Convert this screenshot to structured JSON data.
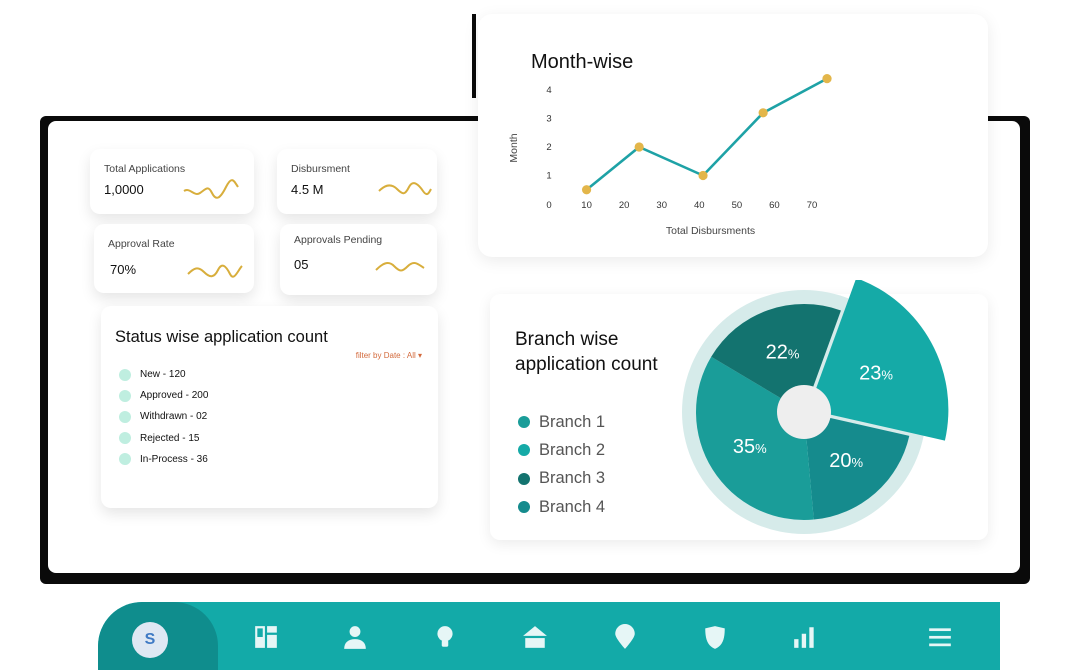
{
  "kpis": [
    {
      "label": "Total Applications",
      "value": "1,0000"
    },
    {
      "label": "Disbursment",
      "value": "4.5 M"
    },
    {
      "label": "Approval Rate",
      "value": "70%"
    },
    {
      "label": "Approvals Pending",
      "value": "05"
    }
  ],
  "status": {
    "title": "Status wise application count",
    "filter": "filter by Date : All",
    "items": [
      "New - 120",
      "Approved - 200",
      "Withdrawn - 02",
      "Rejected - 15",
      "In-Process - 36"
    ]
  },
  "chart_data": [
    {
      "type": "line",
      "title": "Month-wise",
      "xlabel": "Total Disbursments",
      "ylabel": "Month",
      "xlim": [
        0,
        70
      ],
      "ylim": [
        0,
        4
      ],
      "xticks": [
        "0",
        "10",
        "20",
        "30",
        "40",
        "50",
        "60",
        "70"
      ],
      "yticks": [
        "1",
        "2",
        "3",
        "4"
      ],
      "grid": false,
      "series": [
        {
          "x": [
            10,
            24,
            41,
            57,
            74
          ],
          "y": [
            0.5,
            2,
            1,
            3.2,
            4.4
          ],
          "color": "#1ea2a6",
          "marker_color": "#e3b64a"
        }
      ]
    },
    {
      "type": "pie",
      "title": "Branch wise application count",
      "categories": [
        "Branch 1",
        "Branch 2",
        "Branch 3",
        "Branch 4"
      ],
      "values": [
        23,
        20,
        35,
        22
      ],
      "labels": [
        "23%",
        "20%",
        "35%",
        "22%"
      ],
      "colors": [
        "#15aaa7",
        "#158b8d",
        "#1a9d99",
        "#13736f"
      ],
      "legend_colors": [
        "#1a9d99",
        "#15aaa7",
        "#13736f",
        "#158b8d"
      ]
    }
  ],
  "nav": {
    "logo": "S",
    "items": [
      "dashboard-icon",
      "user-icon",
      "lightbulb-icon",
      "home-icon",
      "location-pin-icon",
      "shield-icon",
      "bar-chart-icon",
      "menu-icon"
    ]
  },
  "colors": {
    "accent": "#13aaa8",
    "accent_dark": "#0f8d8d",
    "sparkline": "#d8ae3c",
    "marker": "#e3b64a"
  }
}
